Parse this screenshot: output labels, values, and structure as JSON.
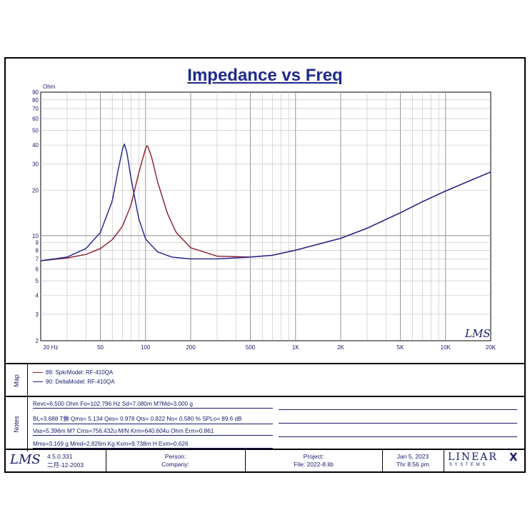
{
  "title": "Impedance vs Freq",
  "chart_data": {
    "type": "line",
    "title": "Impedance vs Freq",
    "xlabel": "",
    "ylabel": "Ohm",
    "x_scale": "log",
    "y_scale": "log",
    "xlim": [
      20,
      20000
    ],
    "ylim": [
      2,
      90
    ],
    "x_tick_labels": [
      "20 Hz",
      "50",
      "100",
      "200",
      "500",
      "1K",
      "2K",
      "5K",
      "10K",
      "20K"
    ],
    "y_tick_labels": [
      "2",
      "3",
      "4",
      "5",
      "6",
      "7",
      "8",
      "9",
      "10",
      "20",
      "30",
      "40",
      "50",
      "60",
      "70",
      "80",
      "90"
    ],
    "grid": true,
    "series": [
      {
        "name": "89: SpkrModel: RF-410QA",
        "color": "#8b1a2b",
        "x": [
          20,
          30,
          40,
          50,
          60,
          70,
          80,
          90,
          100,
          102.8,
          110,
          120,
          140,
          160,
          200,
          300,
          500,
          700,
          1000,
          2000,
          3000,
          5000,
          7000,
          10000,
          15000,
          20000
        ],
        "y": [
          6.8,
          7.1,
          7.5,
          8.2,
          9.4,
          11.5,
          16,
          26,
          38,
          40,
          33,
          23,
          14,
          10.5,
          8.3,
          7.3,
          7.2,
          7.4,
          8.0,
          9.6,
          11.2,
          14.2,
          16.8,
          19.8,
          23.5,
          26.5
        ]
      },
      {
        "name": "90: DeltaModel: RF-410QA",
        "color": "#1c1f8c",
        "x": [
          20,
          30,
          40,
          50,
          60,
          65,
          70,
          72,
          75,
          80,
          90,
          100,
          120,
          150,
          200,
          300,
          500,
          700,
          1000,
          2000,
          3000,
          5000,
          7000,
          10000,
          15000,
          20000
        ],
        "y": [
          6.8,
          7.2,
          8.2,
          10.5,
          17,
          26,
          37,
          41,
          36,
          24,
          13,
          9.5,
          7.8,
          7.2,
          7.0,
          7.0,
          7.2,
          7.4,
          8.0,
          9.6,
          11.2,
          14.2,
          16.8,
          19.8,
          23.5,
          26.5
        ]
      }
    ]
  },
  "watermark": "LMS",
  "map": {
    "label": "Map",
    "entries": [
      {
        "text": "89: SpkrModel: RF-410QA",
        "color": "#8b1a2b"
      },
      {
        "text": "90: DeltaModel: RF-410QA",
        "color": "#1c1f8c"
      }
    ]
  },
  "notes": {
    "label": "Notes",
    "lines": [
      "Revc=6.500 Ohm  Fo=102.796 Hz  Sd=7.080m M?Md=3.000 g",
      "BL=3.688 T鎖  Qms= 5.134  Qes= 0.978  Qts= 0.822  No= 0.580 %  SPLo= 89.6 dB",
      "Vas=5.396m M? Cms=756.432u M/N  Krm=640.604u Ohm  Erm=0.861",
      "Mms=3.169 g  Mmd=2.826m Kg  Kxm=9.738m H  Exm=0.626"
    ]
  },
  "footer": {
    "logo": "LMS",
    "version": "4.5.0.331",
    "version_date": "二月-12-2003",
    "person_label": "Person:",
    "company_label": "Company:",
    "project_label": "Project:",
    "file_label": "File: 2022-8.lib",
    "date": "Jan  5, 2023",
    "time": "Thr  8:56 pm",
    "brand": "LINEAR",
    "brand_mark": "X",
    "brand_sub": "S Y S T E M S"
  }
}
